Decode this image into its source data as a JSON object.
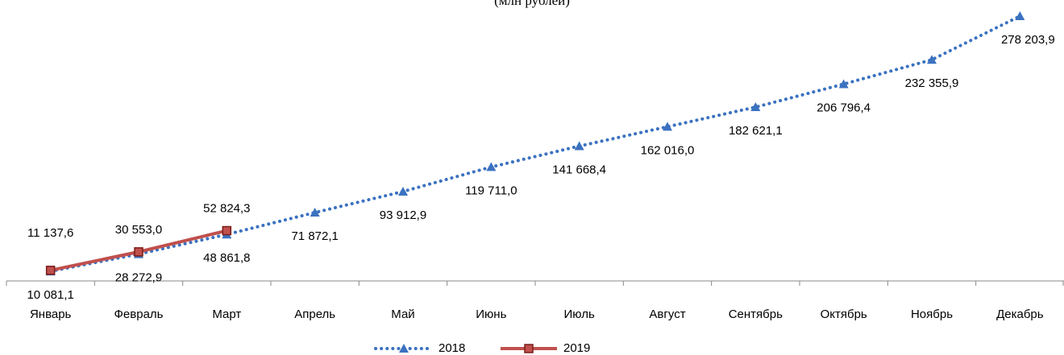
{
  "chart_data": {
    "type": "line",
    "subtitle": "(млн рублей)",
    "categories": [
      "Январь",
      "Февраль",
      "Март",
      "Апрель",
      "Май",
      "Июнь",
      "Июль",
      "Август",
      "Сентябрь",
      "Октябрь",
      "Ноябрь",
      "Декабрь"
    ],
    "series": [
      {
        "name": "2018",
        "color": "#3b72c0",
        "marker": "triangle",
        "dash": "dotted",
        "values": [
          10081.1,
          28272.9,
          48861.8,
          71872.1,
          93912.9,
          119711.0,
          141668.4,
          162016.0,
          182621.1,
          206796.4,
          232355.9,
          278203.9
        ],
        "value_labels": [
          "10 081,1",
          "28 272,9",
          "48 861,8",
          "71 872,1",
          "93 912,9",
          "119 711,0",
          "141 668,4",
          "162 016,0",
          "182 621,1",
          "206 796,4",
          "232 355,9",
          "278 203,9"
        ]
      },
      {
        "name": "2019",
        "color": "#c0504d",
        "marker": "square",
        "dash": "solid",
        "values": [
          11137.6,
          30553.0,
          52824.3,
          null,
          null,
          null,
          null,
          null,
          null,
          null,
          null,
          null
        ],
        "value_labels": [
          "11 137,6",
          "30 553,0",
          "52 824,3",
          null,
          null,
          null,
          null,
          null,
          null,
          null,
          null,
          null
        ]
      }
    ],
    "legend": "bottom"
  }
}
